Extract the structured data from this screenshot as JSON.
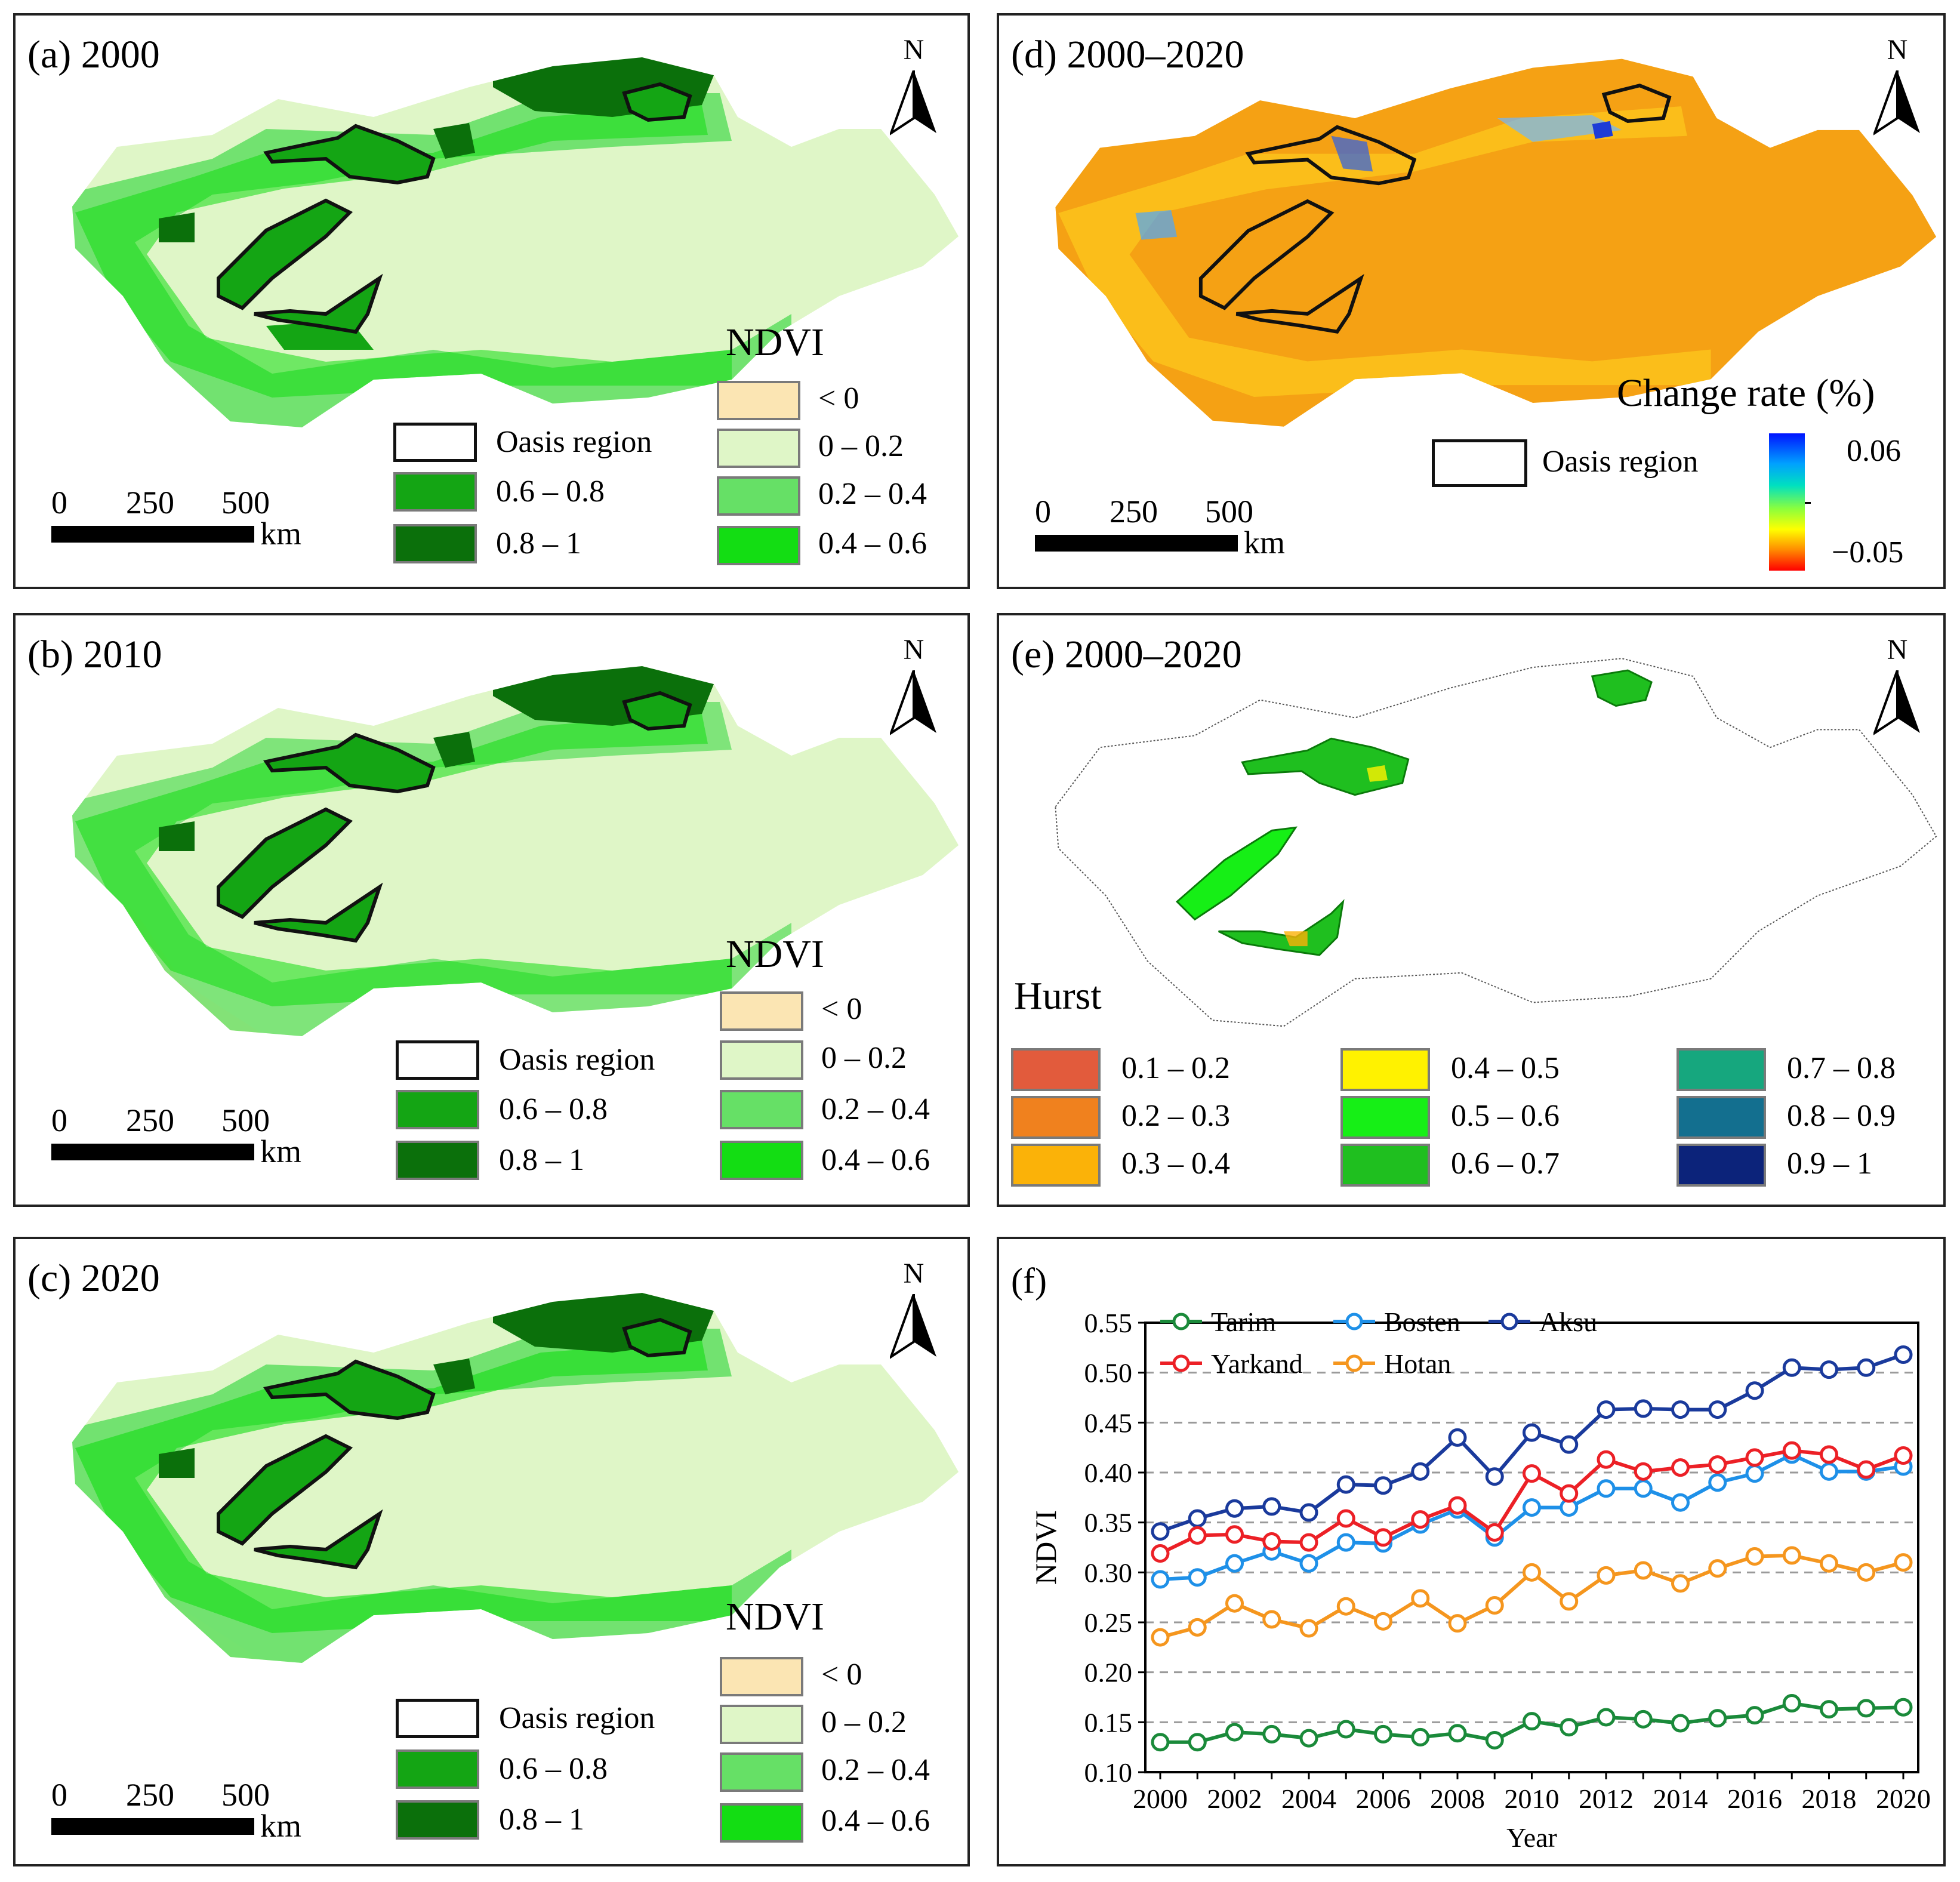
{
  "panels": {
    "a": {
      "title": "(a) 2000"
    },
    "b": {
      "title": "(b)  2010"
    },
    "c": {
      "title": "(c) 2020"
    },
    "d": {
      "title": "(d) 2000–2020"
    },
    "e": {
      "title": "(e) 2000–2020"
    },
    "f": {
      "title": "(f)"
    }
  },
  "north_label": "N",
  "scale_bar": {
    "t0": "0",
    "t1": "250",
    "t2": "500",
    "unit": "km"
  },
  "ndvi_legend": {
    "title": "NDVI",
    "oasis": "Oasis region",
    "c_lt0": "< 0",
    "c_0_02": "0 – 0.2",
    "c_02_04": "0.2 – 0.4",
    "c_04_06": "0.4 – 0.6",
    "c_06_08": "0.6 – 0.8",
    "c_08_1": "0.8 – 1",
    "colors": {
      "lt0": "#fbe5b3",
      "c0_02": "#dff6c7",
      "c02_04": "#66e066",
      "c04_06": "#13dd13",
      "c06_08": "#14a514",
      "c08_1": "#0b700b"
    }
  },
  "change_legend": {
    "title": "Change rate (%)",
    "oasis": "Oasis region",
    "max": "0.06",
    "min": "−0.05"
  },
  "hurst_legend": {
    "title": "Hurst",
    "items": [
      {
        "label": "0.1 – 0.2",
        "color": "#e25b3c"
      },
      {
        "label": "0.2 – 0.3",
        "color": "#f0811e"
      },
      {
        "label": "0.3 – 0.4",
        "color": "#fbb208"
      },
      {
        "label": "0.4 – 0.5",
        "color": "#fff200"
      },
      {
        "label": "0.5 – 0.6",
        "color": "#16ef16"
      },
      {
        "label": "0.6 – 0.7",
        "color": "#1fbf1f"
      },
      {
        "label": "0.7 – 0.8",
        "color": "#16a77e"
      },
      {
        "label": "0.8 – 0.9",
        "color": "#136f8f"
      },
      {
        "label": "0.9 – 1",
        "color": "#0c237a"
      }
    ]
  },
  "chart_data": {
    "type": "line",
    "title": "(f)",
    "xlabel": "Year",
    "ylabel": "NDVI",
    "x": [
      2000,
      2001,
      2002,
      2003,
      2004,
      2005,
      2006,
      2007,
      2008,
      2009,
      2010,
      2011,
      2012,
      2013,
      2014,
      2015,
      2016,
      2017,
      2018,
      2019,
      2020
    ],
    "xticks": [
      "2000",
      "2002",
      "2004",
      "2006",
      "2008",
      "2010",
      "2012",
      "2014",
      "2016",
      "2018",
      "2020"
    ],
    "ylim": [
      0.1,
      0.55
    ],
    "yticks": [
      "0.10",
      "0.15",
      "0.20",
      "0.25",
      "0.30",
      "0.35",
      "0.40",
      "0.45",
      "0.50",
      "0.55"
    ],
    "grid": "horizontal dashed",
    "legend_position": "top-left",
    "series": [
      {
        "name": "Tarim",
        "color": "#1a8a3a",
        "values": [
          0.13,
          0.13,
          0.14,
          0.138,
          0.134,
          0.143,
          0.138,
          0.135,
          0.139,
          0.132,
          0.151,
          0.145,
          0.155,
          0.153,
          0.149,
          0.154,
          0.157,
          0.169,
          0.163,
          0.164,
          0.165
        ]
      },
      {
        "name": "Bosten",
        "color": "#1e90e8",
        "values": [
          0.293,
          0.295,
          0.309,
          0.321,
          0.309,
          0.33,
          0.329,
          0.348,
          0.363,
          0.335,
          0.365,
          0.365,
          0.384,
          0.384,
          0.37,
          0.39,
          0.399,
          0.418,
          0.401,
          0.401,
          0.406
        ]
      },
      {
        "name": "Aksu",
        "color": "#1a3a9c",
        "values": [
          0.341,
          0.354,
          0.364,
          0.366,
          0.36,
          0.388,
          0.387,
          0.401,
          0.435,
          0.396,
          0.44,
          0.428,
          0.463,
          0.464,
          0.463,
          0.463,
          0.482,
          0.505,
          0.503,
          0.505,
          0.518
        ]
      },
      {
        "name": "Yarkand",
        "color": "#ec2026",
        "values": [
          0.319,
          0.337,
          0.338,
          0.331,
          0.33,
          0.354,
          0.335,
          0.353,
          0.367,
          0.34,
          0.399,
          0.379,
          0.413,
          0.401,
          0.405,
          0.408,
          0.415,
          0.422,
          0.418,
          0.403,
          0.417
        ]
      },
      {
        "name": "Hotan",
        "color": "#f5961e",
        "values": [
          0.235,
          0.245,
          0.269,
          0.253,
          0.244,
          0.266,
          0.251,
          0.274,
          0.249,
          0.267,
          0.3,
          0.271,
          0.297,
          0.302,
          0.289,
          0.304,
          0.316,
          0.317,
          0.309,
          0.3,
          0.31
        ]
      }
    ]
  }
}
